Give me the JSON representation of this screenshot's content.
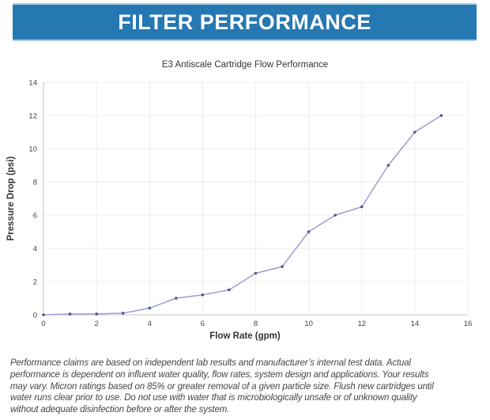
{
  "header": {
    "title": "FILTER PERFORMANCE"
  },
  "colors": {
    "header_bg": "#2678b2",
    "header_border": "#a6cde4",
    "line": "#999ed0",
    "marker": "#54548c",
    "grid": "#ececec",
    "axis": "#c6c6c6",
    "tick_text": "#444444"
  },
  "chart_data": {
    "type": "line",
    "title": "E3 Antiscale Cartridge Flow Performance",
    "xlabel": "Flow Rate (gpm)",
    "ylabel": "Pressure Drop (psi)",
    "x": [
      0,
      1,
      2,
      3,
      4,
      5,
      6,
      7,
      8,
      9,
      10,
      11,
      12,
      13,
      14,
      15
    ],
    "values": [
      0,
      0.05,
      0.05,
      0.1,
      0.4,
      1.0,
      1.2,
      1.5,
      2.5,
      2.9,
      5.0,
      6.0,
      6.5,
      9.0,
      11.0,
      12.0
    ],
    "xlim": [
      0,
      16
    ],
    "ylim": [
      0,
      14
    ],
    "xticks": [
      0,
      2,
      4,
      6,
      8,
      10,
      12,
      14,
      16
    ],
    "yticks": [
      0,
      2,
      4,
      6,
      8,
      10,
      12,
      14
    ],
    "grid": true,
    "legend": "none"
  },
  "disclaimer": {
    "lines": [
      "Performance claims are based on independent lab results and manufacturer’s internal test data. Actual",
      "performance is dependent on influent water quality, flow rates, system design and applications. Your results",
      "may vary. Micron ratings based on 85% or greater removal of a given particle size. Flush new cartridges until",
      "water runs clear prior to use. Do not use with water that is microbiologically unsafe or of unknown quality",
      "without adequate disinfection before or after the system."
    ]
  }
}
